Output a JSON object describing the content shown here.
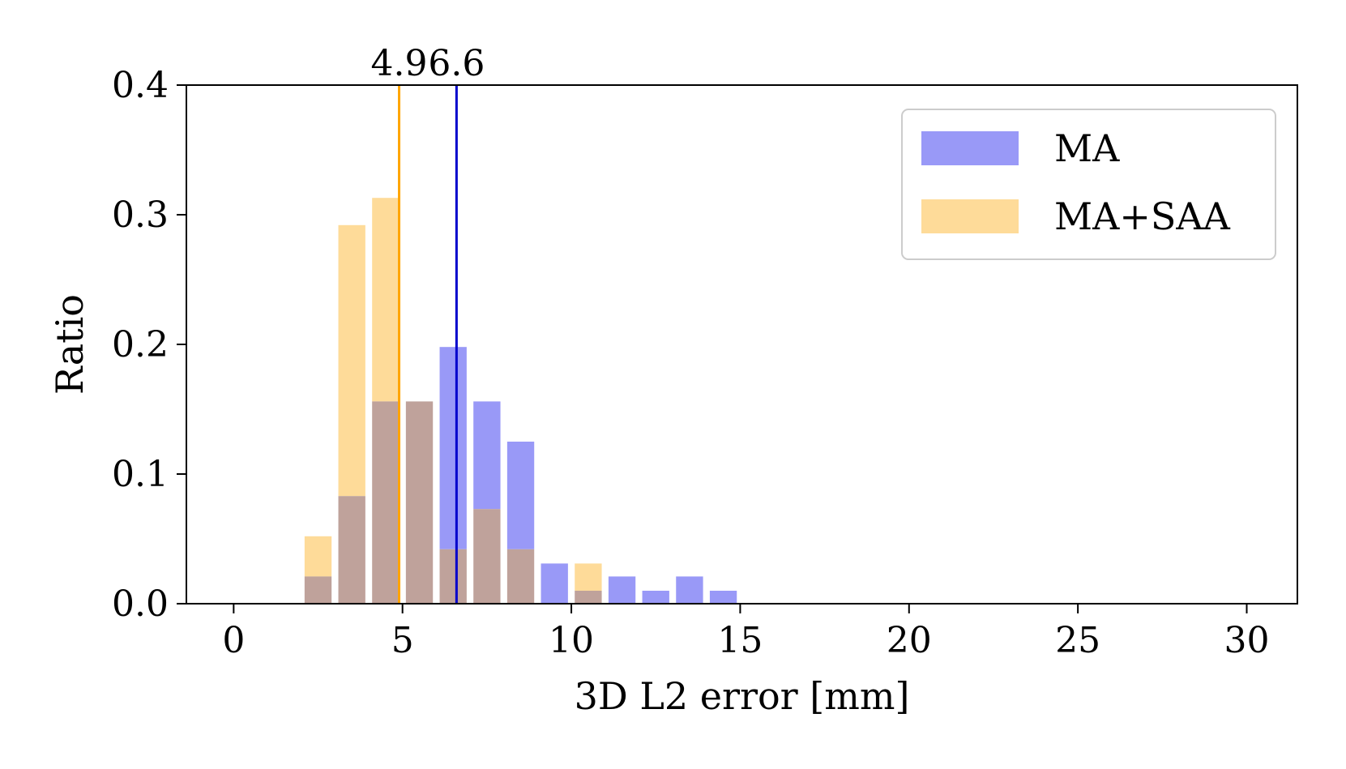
{
  "chart_data": {
    "type": "bar",
    "title": "",
    "xlabel": "3D L2 error [mm]",
    "ylabel": "Ratio",
    "xlim": [
      -1.4,
      31.5
    ],
    "ylim": [
      0,
      0.4
    ],
    "xticks": [
      0,
      5,
      10,
      15,
      20,
      25,
      30
    ],
    "xtick_labels": [
      "0",
      "5",
      "10",
      "15",
      "20",
      "25",
      "30"
    ],
    "yticks": [
      0.0,
      0.1,
      0.2,
      0.3,
      0.4
    ],
    "ytick_labels": [
      "0.0",
      "0.1",
      "0.2",
      "0.3",
      "0.4"
    ],
    "grid": false,
    "legend_position": "top-right",
    "bin_width_mm": 1,
    "bar_fill_fraction": 0.8,
    "x": [
      2.5,
      3.5,
      4.5,
      5.5,
      6.5,
      7.5,
      8.5,
      9.5,
      10.5,
      11.5,
      12.5,
      13.5,
      14.5
    ],
    "series": [
      {
        "name": "MA",
        "color": "#9999f7",
        "values": [
          0.021,
          0.083,
          0.156,
          0.156,
          0.198,
          0.156,
          0.125,
          0.031,
          0.01,
          0.021,
          0.01,
          0.021,
          0.01
        ]
      },
      {
        "name": "MA+SAA",
        "color": "#fedb99",
        "values": [
          0.052,
          0.292,
          0.313,
          0.156,
          0.042,
          0.073,
          0.042,
          0.0,
          0.031,
          0.0,
          0.0,
          0.0,
          0.0
        ]
      }
    ],
    "overlap_color": "#bfa29b",
    "mean_lines": [
      {
        "label": "4.9",
        "value": 4.9,
        "color": "#ffa500"
      },
      {
        "label": "6.6",
        "value": 6.6,
        "color": "#0000cc"
      }
    ]
  }
}
